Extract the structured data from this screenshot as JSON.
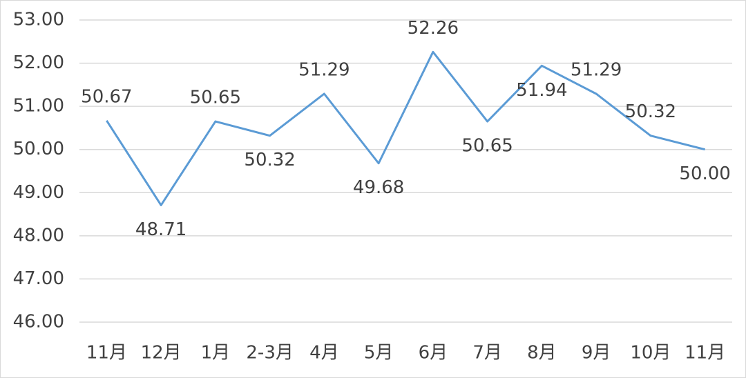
{
  "chart_data": {
    "type": "line",
    "categories": [
      "11月",
      "12月",
      "1月",
      "2-3月",
      "4月",
      "5月",
      "6月",
      "7月",
      "8月",
      "9月",
      "10月",
      "11月"
    ],
    "series": [
      {
        "color": "#5b9bd5",
        "values": [
          50.67,
          48.71,
          50.65,
          50.32,
          51.29,
          49.68,
          52.26,
          50.65,
          51.94,
          51.29,
          50.32,
          50
        ],
        "value_labels": [
          "50.67",
          "48.71",
          "50.65",
          "50.32",
          "51.29",
          "49.68",
          "52.26",
          "50.65",
          "51.94",
          "51.29",
          "50.32",
          "50.00"
        ]
      }
    ],
    "ylim": [
      46,
      53
    ],
    "yticks": [
      {
        "value": 46,
        "label": "46.00"
      },
      {
        "value": 47,
        "label": "47.00"
      },
      {
        "value": 48,
        "label": "48.00"
      },
      {
        "value": 49,
        "label": "49.00"
      },
      {
        "value": 50,
        "label": "50.00"
      },
      {
        "value": 51,
        "label": "51.00"
      },
      {
        "value": 52,
        "label": "52.00"
      },
      {
        "value": 53,
        "label": "53.00"
      }
    ],
    "grid": true
  }
}
